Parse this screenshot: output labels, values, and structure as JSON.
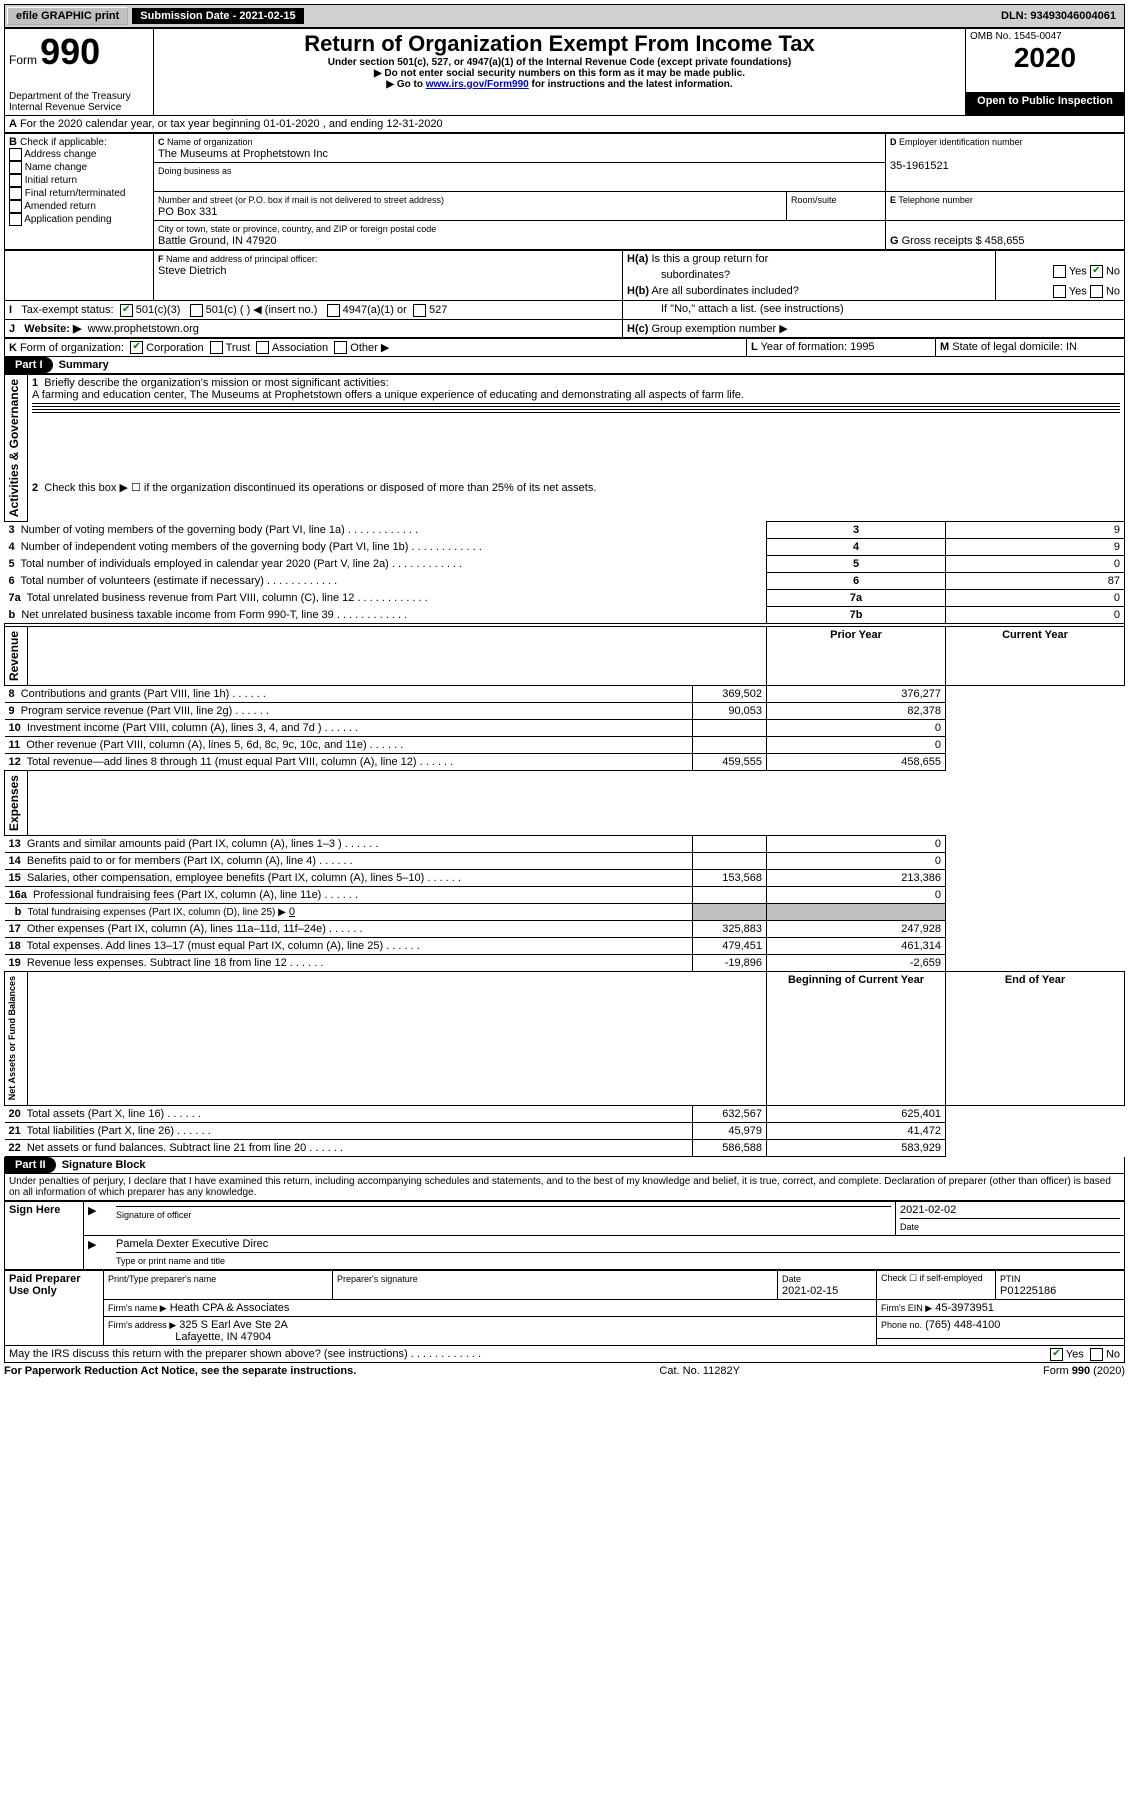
{
  "topbar": {
    "efile": "efile GRAPHIC print",
    "submission": "Submission Date - 2021-02-15",
    "dln": "DLN: 93493046004061"
  },
  "header": {
    "form_word": "Form",
    "form_num": "990",
    "dept1": "Department of the Treasury",
    "dept2": "Internal Revenue Service",
    "title": "Return of Organization Exempt From Income Tax",
    "sub1": "Under section 501(c), 527, or 4947(a)(1) of the Internal Revenue Code (except private foundations)",
    "sub2": "Do not enter social security numbers on this form as it may be made public.",
    "sub3_a": "Go to ",
    "sub3_link": "www.irs.gov/Form990",
    "sub3_b": " for instructions and the latest information.",
    "omb": "OMB No. 1545-0047",
    "year": "2020",
    "open": "Open to Public Inspection"
  },
  "A": {
    "line": "For the 2020 calendar year, or tax year beginning 01-01-2020    , and ending 12-31-2020"
  },
  "B": {
    "label": "Check if applicable:",
    "opts": [
      "Address change",
      "Name change",
      "Initial return",
      "Final return/terminated",
      "Amended return",
      "Application pending"
    ]
  },
  "C": {
    "name_label": "Name of organization",
    "name": "The Museums at Prophetstown Inc",
    "dba_label": "Doing business as",
    "addr_label": "Number and street (or P.O. box if mail is not delivered to street address)",
    "addr": "PO Box 331",
    "room_label": "Room/suite",
    "city_label": "City or town, state or province, country, and ZIP or foreign postal code",
    "city": "Battle Ground, IN  47920"
  },
  "D": {
    "label": "Employer identification number",
    "val": "35-1961521"
  },
  "E": {
    "label": "Telephone number"
  },
  "G": {
    "label": "Gross receipts $",
    "val": "458,655"
  },
  "F": {
    "label": "Name and address of principal officer:",
    "val": "Steve Dietrich"
  },
  "H": {
    "a": "Is this a group return for",
    "a2": "subordinates?",
    "b": "Are all subordinates included?",
    "note": "If \"No,\" attach a list. (see instructions)",
    "c": "Group exemption number ▶",
    "yes": "Yes",
    "no": "No"
  },
  "I": {
    "label": "Tax-exempt status:",
    "o1": "501(c)(3)",
    "o2": "501(c) (  ) ◀ (insert no.)",
    "o3": "4947(a)(1) or",
    "o4": "527"
  },
  "J": {
    "label": "Website: ▶",
    "val": "www.prophetstown.org"
  },
  "K": {
    "label": "Form of organization:",
    "opts": [
      "Corporation",
      "Trust",
      "Association",
      "Other ▶"
    ]
  },
  "L": {
    "label": "Year of formation:",
    "val": "1995"
  },
  "M": {
    "label": "State of legal domicile:",
    "val": "IN"
  },
  "part1": {
    "title": "Part I",
    "subtitle": "Summary",
    "side_ag": "Activities & Governance",
    "side_rev": "Revenue",
    "side_exp": "Expenses",
    "side_na": "Net Assets or Fund Balances",
    "l1a": "Briefly describe the organization's mission or most significant activities:",
    "l1b": "A farming and education center, The Museums at Prophetstown offers a unique experience of educating and demonstrating all aspects of farm life.",
    "l2": "Check this box ▶ ☐  if the organization discontinued its operations or disposed of more than 25% of its net assets.",
    "rows_gov": [
      {
        "n": "3",
        "t": "Number of voting members of the governing body (Part VI, line 1a)",
        "box": "3",
        "v": "9"
      },
      {
        "n": "4",
        "t": "Number of independent voting members of the governing body (Part VI, line 1b)",
        "box": "4",
        "v": "9"
      },
      {
        "n": "5",
        "t": "Total number of individuals employed in calendar year 2020 (Part V, line 2a)",
        "box": "5",
        "v": "0"
      },
      {
        "n": "6",
        "t": "Total number of volunteers (estimate if necessary)",
        "box": "6",
        "v": "87"
      },
      {
        "n": "7a",
        "t": "Total unrelated business revenue from Part VIII, column (C), line 12",
        "box": "7a",
        "v": "0"
      },
      {
        "n": "b",
        "t": "Net unrelated business taxable income from Form 990-T, line 39",
        "box": "7b",
        "v": "0"
      }
    ],
    "col_prior": "Prior Year",
    "col_curr": "Current Year",
    "rows_rev": [
      {
        "n": "8",
        "t": "Contributions and grants (Part VIII, line 1h)",
        "p": "369,502",
        "c": "376,277"
      },
      {
        "n": "9",
        "t": "Program service revenue (Part VIII, line 2g)",
        "p": "90,053",
        "c": "82,378"
      },
      {
        "n": "10",
        "t": "Investment income (Part VIII, column (A), lines 3, 4, and 7d )",
        "p": "",
        "c": "0"
      },
      {
        "n": "11",
        "t": "Other revenue (Part VIII, column (A), lines 5, 6d, 8c, 9c, 10c, and 11e)",
        "p": "",
        "c": "0"
      },
      {
        "n": "12",
        "t": "Total revenue—add lines 8 through 11 (must equal Part VIII, column (A), line 12)",
        "p": "459,555",
        "c": "458,655"
      }
    ],
    "rows_exp": [
      {
        "n": "13",
        "t": "Grants and similar amounts paid (Part IX, column (A), lines 1–3 )",
        "p": "",
        "c": "0"
      },
      {
        "n": "14",
        "t": "Benefits paid to or for members (Part IX, column (A), line 4)",
        "p": "",
        "c": "0"
      },
      {
        "n": "15",
        "t": "Salaries, other compensation, employee benefits (Part IX, column (A), lines 5–10)",
        "p": "153,568",
        "c": "213,386"
      },
      {
        "n": "16a",
        "t": "Professional fundraising fees (Part IX, column (A), line 11e)",
        "p": "",
        "c": "0"
      }
    ],
    "l16b_a": "Total fundraising expenses (Part IX, column (D), line 25) ▶",
    "l16b_v": "0",
    "rows_exp2": [
      {
        "n": "17",
        "t": "Other expenses (Part IX, column (A), lines 11a–11d, 11f–24e)",
        "p": "325,883",
        "c": "247,928"
      },
      {
        "n": "18",
        "t": "Total expenses. Add lines 13–17 (must equal Part IX, column (A), line 25)",
        "p": "479,451",
        "c": "461,314"
      },
      {
        "n": "19",
        "t": "Revenue less expenses. Subtract line 18 from line 12",
        "p": "-19,896",
        "c": "-2,659"
      }
    ],
    "col_boy": "Beginning of Current Year",
    "col_eoy": "End of Year",
    "rows_na": [
      {
        "n": "20",
        "t": "Total assets (Part X, line 16)",
        "p": "632,567",
        "c": "625,401"
      },
      {
        "n": "21",
        "t": "Total liabilities (Part X, line 26)",
        "p": "45,979",
        "c": "41,472"
      },
      {
        "n": "22",
        "t": "Net assets or fund balances. Subtract line 21 from line 20",
        "p": "586,588",
        "c": "583,929"
      }
    ]
  },
  "part2": {
    "title": "Part II",
    "subtitle": "Signature Block",
    "decl": "Under penalties of perjury, I declare that I have examined this return, including accompanying schedules and statements, and to the best of my knowledge and belief, it is true, correct, and complete. Declaration of preparer (other than officer) is based on all information of which preparer has any knowledge.",
    "sign_here": "Sign Here",
    "sig_officer": "Signature of officer",
    "date": "Date",
    "date_v": "2021-02-02",
    "name_title": "Pamela Dexter  Executive Direc",
    "name_title_label": "Type or print name and title",
    "paid": "Paid Preparer Use Only",
    "pp_name_label": "Print/Type preparer's name",
    "pp_sig_label": "Preparer's signature",
    "pp_date_label": "Date",
    "pp_date": "2021-02-15",
    "pp_check": "Check ☐ if self-employed",
    "ptin_label": "PTIN",
    "ptin": "P01225186",
    "firm_name_label": "Firm's name   ▶",
    "firm_name": "Heath CPA & Associates",
    "firm_ein_label": "Firm's EIN ▶",
    "firm_ein": "45-3973951",
    "firm_addr_label": "Firm's address ▶",
    "firm_addr1": "325 S Earl Ave Ste 2A",
    "firm_addr2": "Lafayette, IN  47904",
    "phone_label": "Phone no.",
    "phone": "(765) 448-4100",
    "discuss": "May the IRS discuss this return with the preparer shown above? (see instructions)"
  },
  "footer": {
    "left": "For Paperwork Reduction Act Notice, see the separate instructions.",
    "mid": "Cat. No. 11282Y",
    "right": "Form 990 (2020)"
  }
}
